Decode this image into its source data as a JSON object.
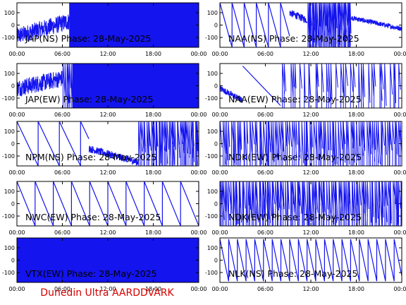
{
  "figure": {
    "footer": "Dunedin Ultra AARDDVARK",
    "colors": {
      "trace": "#1414ee",
      "footer": "#d40000",
      "axis": "#000000"
    }
  },
  "chart_data": [
    {
      "type": "line",
      "title": "JAP(NS) Phase: 28-May-2025",
      "x_ticks": [
        "00:00",
        "06:00",
        "12:00",
        "18:00",
        "00:00"
      ],
      "y_ticks": [
        "100",
        "0",
        "-100"
      ],
      "ylim": [
        -180,
        180
      ],
      "xlim_hours": [
        0,
        24
      ],
      "series": [
        {
          "segments": [
            {
              "kind": "noisy",
              "x": [
                0,
                6.9
              ],
              "level": [
                -90,
                30
              ],
              "amp": 70
            },
            {
              "kind": "fill",
              "x": [
                6.9,
                24
              ]
            }
          ]
        }
      ]
    },
    {
      "type": "line",
      "title": "NAA(NS) Phase: 28-May-2025",
      "x_ticks": [
        "00:00",
        "06:00",
        "12:00",
        "18:00",
        "00:00"
      ],
      "y_ticks": [
        "100",
        "0",
        "-100"
      ],
      "ylim": [
        -180,
        180
      ],
      "xlim_hours": [
        0,
        24
      ],
      "series": [
        {
          "segments": [
            {
              "kind": "ramps",
              "x": [
                0,
                9.2
              ],
              "period": 1.6,
              "from": 180,
              "to": -180
            },
            {
              "kind": "noisy",
              "x": [
                9.2,
                11.5
              ],
              "level": [
                100,
                40
              ],
              "amp": 30
            },
            {
              "kind": "spikes",
              "x": [
                11.5,
                17.3
              ],
              "count": 40
            },
            {
              "kind": "noisy",
              "x": [
                17.3,
                24
              ],
              "level": [
                60,
                -30
              ],
              "amp": 20
            }
          ]
        }
      ]
    },
    {
      "type": "line",
      "title": "JAP(EW) Phase: 28-May-2025",
      "x_ticks": [
        "00:00",
        "06:00",
        "12:00",
        "18:00",
        "00:00"
      ],
      "y_ticks": [
        "100",
        "0",
        "-100"
      ],
      "ylim": [
        -180,
        180
      ],
      "xlim_hours": [
        0,
        24
      ],
      "series": [
        {
          "segments": [
            {
              "kind": "noisy",
              "x": [
                0,
                6.0
              ],
              "level": [
                -20,
                60
              ],
              "amp": 70
            },
            {
              "kind": "spikes",
              "x": [
                6.0,
                7.3
              ],
              "count": 6
            },
            {
              "kind": "fill",
              "x": [
                7.3,
                24
              ]
            }
          ]
        }
      ]
    },
    {
      "type": "line",
      "title": "NAA(EW) Phase: 28-May-2025",
      "x_ticks": [
        "00:00",
        "06:00",
        "12:00",
        "18:00",
        "00:00"
      ],
      "y_ticks": [
        "100",
        "0",
        "-100"
      ],
      "ylim": [
        -180,
        180
      ],
      "xlim_hours": [
        0,
        24
      ],
      "series": [
        {
          "segments": [
            {
              "kind": "noisy",
              "x": [
                0,
                3.0
              ],
              "level": [
                -20,
                -120
              ],
              "amp": 25
            },
            {
              "kind": "ramps",
              "x": [
                3.0,
                8.0
              ],
              "period": 5.0,
              "from": 160,
              "to": -160
            },
            {
              "kind": "spikes",
              "x": [
                8.0,
                24
              ],
              "count": 34
            }
          ]
        }
      ]
    },
    {
      "type": "line",
      "title": "NPM(NS) Phase: 28-May-2025",
      "x_ticks": [
        "00:00",
        "06:00",
        "12:00",
        "18:00",
        "00:00"
      ],
      "y_ticks": [
        "100",
        "0",
        "-100"
      ],
      "ylim": [
        -180,
        180
      ],
      "xlim_hours": [
        0,
        24
      ],
      "series": [
        {
          "segments": [
            {
              "kind": "ramps",
              "x": [
                0,
                9.5
              ],
              "period": 2.8,
              "from": 180,
              "to": -180
            },
            {
              "kind": "noisy",
              "x": [
                9.5,
                16.0
              ],
              "level": [
                -40,
                -150
              ],
              "amp": 30
            },
            {
              "kind": "spikes",
              "x": [
                16.0,
                24
              ],
              "count": 40
            }
          ]
        }
      ]
    },
    {
      "type": "line",
      "title": "NDK(EW) Phase: 28-May-2025",
      "x_ticks": [
        "00:00",
        "06:00",
        "12:00",
        "18:00",
        "00:00"
      ],
      "y_ticks": [
        "100",
        "0",
        "-100"
      ],
      "ylim": [
        -180,
        180
      ],
      "xlim_hours": [
        0,
        24
      ],
      "series": [
        {
          "segments": [
            {
              "kind": "spikes",
              "x": [
                0,
                24
              ],
              "count": 90
            }
          ]
        }
      ]
    },
    {
      "type": "line",
      "title": "NWC(EW) Phase: 28-May-2025",
      "x_ticks": [
        "00:00",
        "06:00",
        "12:00",
        "18:00",
        "00:00"
      ],
      "y_ticks": [
        "100",
        "0",
        "-100"
      ],
      "ylim": [
        -180,
        180
      ],
      "xlim_hours": [
        0,
        24
      ],
      "series": [
        {
          "segments": [
            {
              "kind": "ramps",
              "x": [
                0,
                24
              ],
              "period": 2.4,
              "from": 180,
              "to": -180
            }
          ]
        }
      ]
    },
    {
      "type": "line",
      "title": "NDK(EW) Phase: 28-May-2025",
      "x_ticks": [
        "00:00",
        "06:00",
        "12:00",
        "18:00",
        "00:00"
      ],
      "y_ticks": [
        "100",
        "0",
        "-100"
      ],
      "ylim": [
        -180,
        180
      ],
      "xlim_hours": [
        0,
        24
      ],
      "series": [
        {
          "segments": [
            {
              "kind": "spikes",
              "x": [
                0,
                24
              ],
              "count": 110
            }
          ]
        }
      ]
    },
    {
      "type": "line",
      "title": "VTX(EW) Phase: 28-May-2025",
      "x_ticks": [
        "00:00",
        "06:00",
        "12:00",
        "18:00",
        "00:00"
      ],
      "y_ticks": [
        "100",
        "0",
        "-100"
      ],
      "ylim": [
        -180,
        180
      ],
      "xlim_hours": [
        0,
        24
      ],
      "series": [
        {
          "segments": [
            {
              "kind": "fill",
              "x": [
                0,
                24
              ]
            }
          ]
        }
      ]
    },
    {
      "type": "line",
      "title": "NLK(NS) Phase: 28-May-2025",
      "x_ticks": [
        "00:00",
        "06:00",
        "12:00",
        "18:00",
        "00:00"
      ],
      "y_ticks": [
        "100",
        "0",
        "-100"
      ],
      "ylim": [
        -180,
        180
      ],
      "xlim_hours": [
        0,
        24
      ],
      "series": [
        {
          "segments": [
            {
              "kind": "ramps",
              "x": [
                0,
                24
              ],
              "period": 1.15,
              "from": 170,
              "to": -170
            }
          ]
        }
      ]
    }
  ]
}
